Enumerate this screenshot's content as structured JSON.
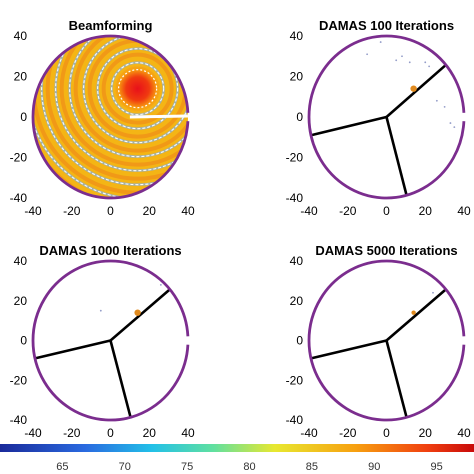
{
  "chart_data": [
    {
      "type": "heatmap",
      "title": "Beamforming",
      "xlim": [
        -40,
        40
      ],
      "ylim": [
        -40,
        40
      ],
      "xticks": [
        "-40",
        "-20",
        "0",
        "20",
        "40"
      ],
      "yticks": [
        "40",
        "20",
        "0",
        "-20",
        "-40"
      ],
      "peak": {
        "x": 14,
        "y": 14
      },
      "array_boundary": "circle",
      "array_radius": 40
    },
    {
      "type": "scatter",
      "title": "DAMAS  100 Iterations",
      "xlim": [
        -40,
        40
      ],
      "ylim": [
        -40,
        40
      ],
      "xticks": [
        "-40",
        "-20",
        "0",
        "20",
        "40"
      ],
      "yticks": [
        "40",
        "20",
        "0",
        "-20",
        "-40"
      ],
      "source": {
        "x": 14,
        "y": 14
      },
      "arms_deg": [
        40,
        193,
        285
      ],
      "array_radius": 40
    },
    {
      "type": "scatter",
      "title": "DAMAS  1000 Iterations",
      "xlim": [
        -40,
        40
      ],
      "ylim": [
        -40,
        40
      ],
      "xticks": [
        "-40",
        "-20",
        "0",
        "20",
        "40"
      ],
      "yticks": [
        "40",
        "20",
        "0",
        "-20",
        "-40"
      ],
      "source": {
        "x": 14,
        "y": 14
      },
      "arms_deg": [
        40,
        193,
        285
      ],
      "array_radius": 40
    },
    {
      "type": "scatter",
      "title": "DAMAS  5000 Iterations",
      "xlim": [
        -40,
        40
      ],
      "ylim": [
        -40,
        40
      ],
      "xticks": [
        "-40",
        "-20",
        "0",
        "20",
        "40"
      ],
      "yticks": [
        "40",
        "20",
        "0",
        "-20",
        "-40"
      ],
      "source": {
        "x": 14,
        "y": 14
      },
      "arms_deg": [
        40,
        193,
        285
      ],
      "array_radius": 40
    }
  ],
  "colorbar": {
    "ticks": [
      "65",
      "70",
      "75",
      "80",
      "85",
      "90",
      "95"
    ],
    "range": [
      60,
      98
    ]
  },
  "colors": {
    "boundary": "#7b2d8e",
    "arm": "#000000",
    "source": "#e08a1e"
  }
}
